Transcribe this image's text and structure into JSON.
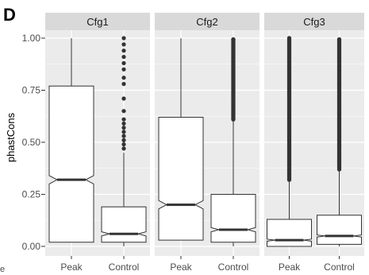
{
  "panel_label": "D",
  "cut_label": "e",
  "colors": {
    "panel_background": "#ebebeb",
    "strip_background": "#d9d9d9",
    "gridline": "#ffffff",
    "box_fill": "#ffffff",
    "box_stroke": "#333333",
    "outlier": "#333333"
  },
  "chart_data": {
    "type": "boxplot",
    "notched": true,
    "ylabel": "phastCons",
    "ylim": [
      0,
      1
    ],
    "y_ticks": [
      "0.00",
      "0.25",
      "0.50",
      "0.75",
      "1.00"
    ],
    "categories": [
      "Peak",
      "Control"
    ],
    "grid": true,
    "facets": [
      {
        "name": "Cfg1",
        "boxes": [
          {
            "category": "Peak",
            "whisker_low": 0.02,
            "q1": 0.02,
            "notch_low": 0.3,
            "median": 0.32,
            "notch_high": 0.34,
            "q3": 0.77,
            "whisker_high": 1.0,
            "outliers": []
          },
          {
            "category": "Control",
            "whisker_low": 0.0,
            "q1": 0.02,
            "notch_low": 0.05,
            "median": 0.06,
            "notch_high": 0.07,
            "q3": 0.19,
            "whisker_high": 0.45,
            "outliers": [
              0.47,
              0.49,
              0.51,
              0.53,
              0.55,
              0.57,
              0.59,
              0.61,
              0.65,
              0.71,
              0.78,
              0.81,
              0.85,
              0.88,
              0.91,
              0.94,
              0.97,
              1.0
            ]
          }
        ]
      },
      {
        "name": "Cfg2",
        "boxes": [
          {
            "category": "Peak",
            "whisker_low": 0.03,
            "q1": 0.03,
            "notch_low": 0.18,
            "median": 0.2,
            "notch_high": 0.22,
            "q3": 0.62,
            "whisker_high": 1.0,
            "outliers": []
          },
          {
            "category": "Control",
            "whisker_low": 0.0,
            "q1": 0.02,
            "notch_low": 0.07,
            "median": 0.08,
            "notch_high": 0.09,
            "q3": 0.25,
            "whisker_high": 0.6,
            "outliers_range": [
              0.61,
              1.0
            ]
          }
        ]
      },
      {
        "name": "Cfg3",
        "boxes": [
          {
            "category": "Peak",
            "whisker_low": 0.0,
            "q1": 0.0,
            "notch_low": 0.025,
            "median": 0.03,
            "notch_high": 0.035,
            "q3": 0.13,
            "whisker_high": 0.31,
            "outliers_range": [
              0.32,
              1.0
            ]
          },
          {
            "category": "Control",
            "whisker_low": 0.0,
            "q1": 0.01,
            "notch_low": 0.045,
            "median": 0.05,
            "notch_high": 0.055,
            "q3": 0.15,
            "whisker_high": 0.36,
            "outliers_range": [
              0.37,
              1.0
            ]
          }
        ]
      }
    ]
  }
}
